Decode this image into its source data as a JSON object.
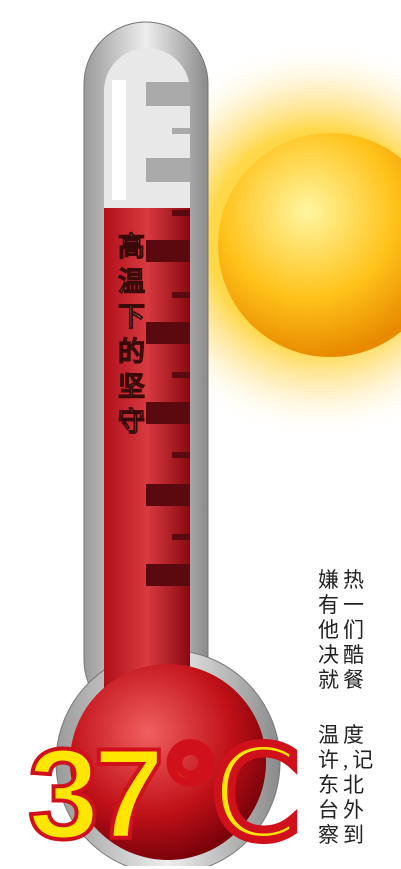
{
  "title": "高温下的坚守",
  "temperature": "37℃",
  "text_fragments": [
    "嫌热",
    "有一",
    "他们",
    "决酷",
    "就餐",
    "温度",
    "许,记",
    "东北",
    "台外",
    "察到"
  ]
}
